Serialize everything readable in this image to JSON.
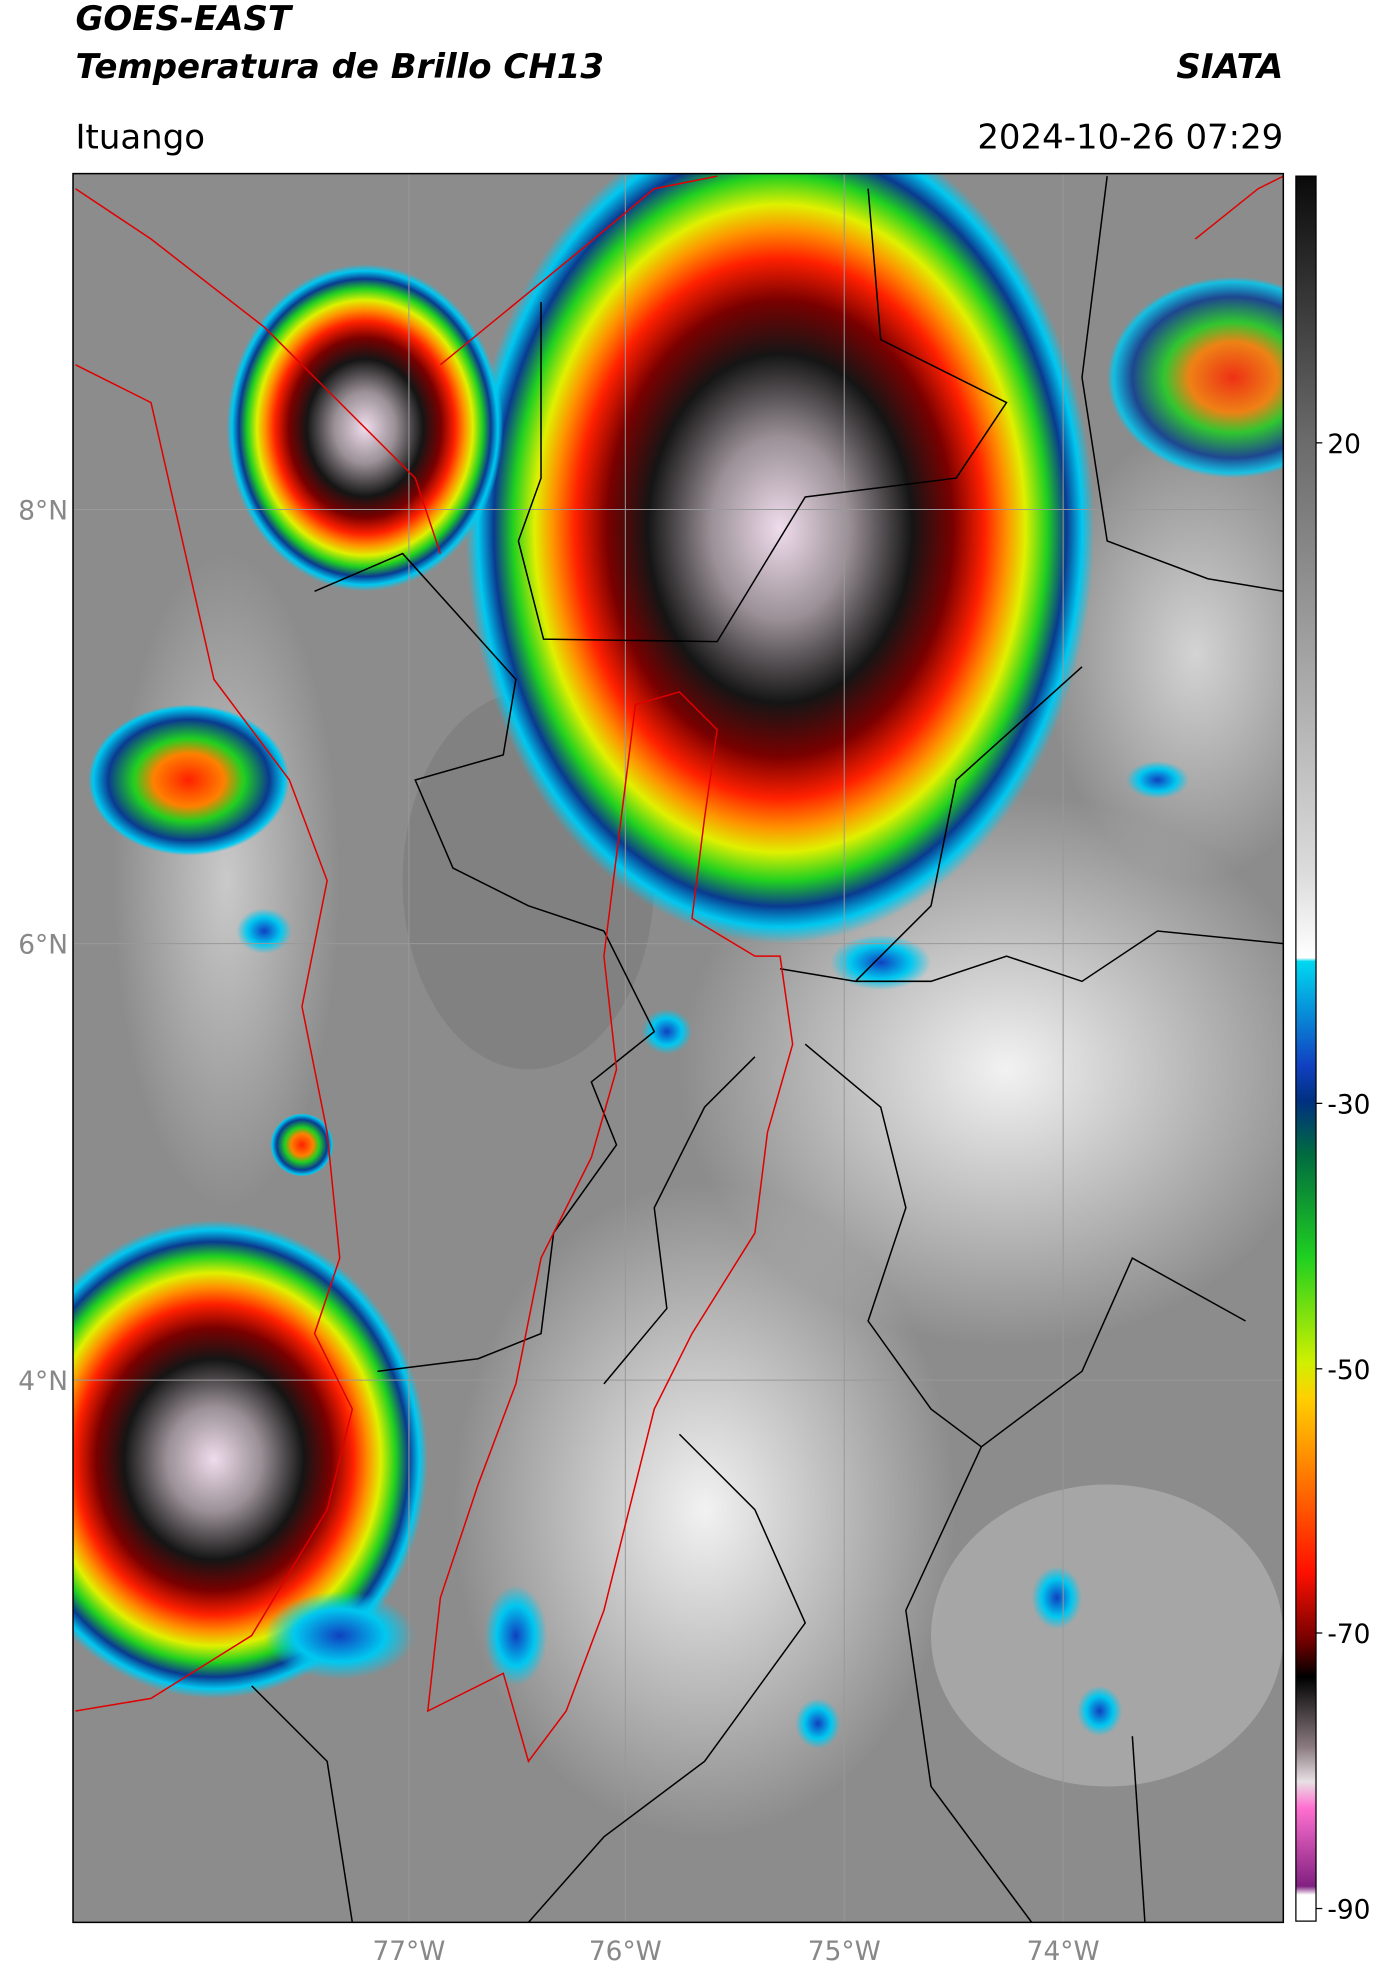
{
  "header": {
    "title": "GOES-EAST",
    "subtitle": "Temperatura de Brillo CH13",
    "agency": "SIATA",
    "location": "Ituango",
    "datetime": "2024-10-26 07:29"
  },
  "map": {
    "lat_labels": [
      "8°N",
      "6°N",
      "4°N"
    ],
    "lon_labels": [
      "77°W",
      "76°W",
      "75°W",
      "74°W"
    ]
  },
  "colorbar": {
    "tick_labels": [
      "20",
      "-30",
      "-50",
      "-70",
      "-90"
    ]
  }
}
